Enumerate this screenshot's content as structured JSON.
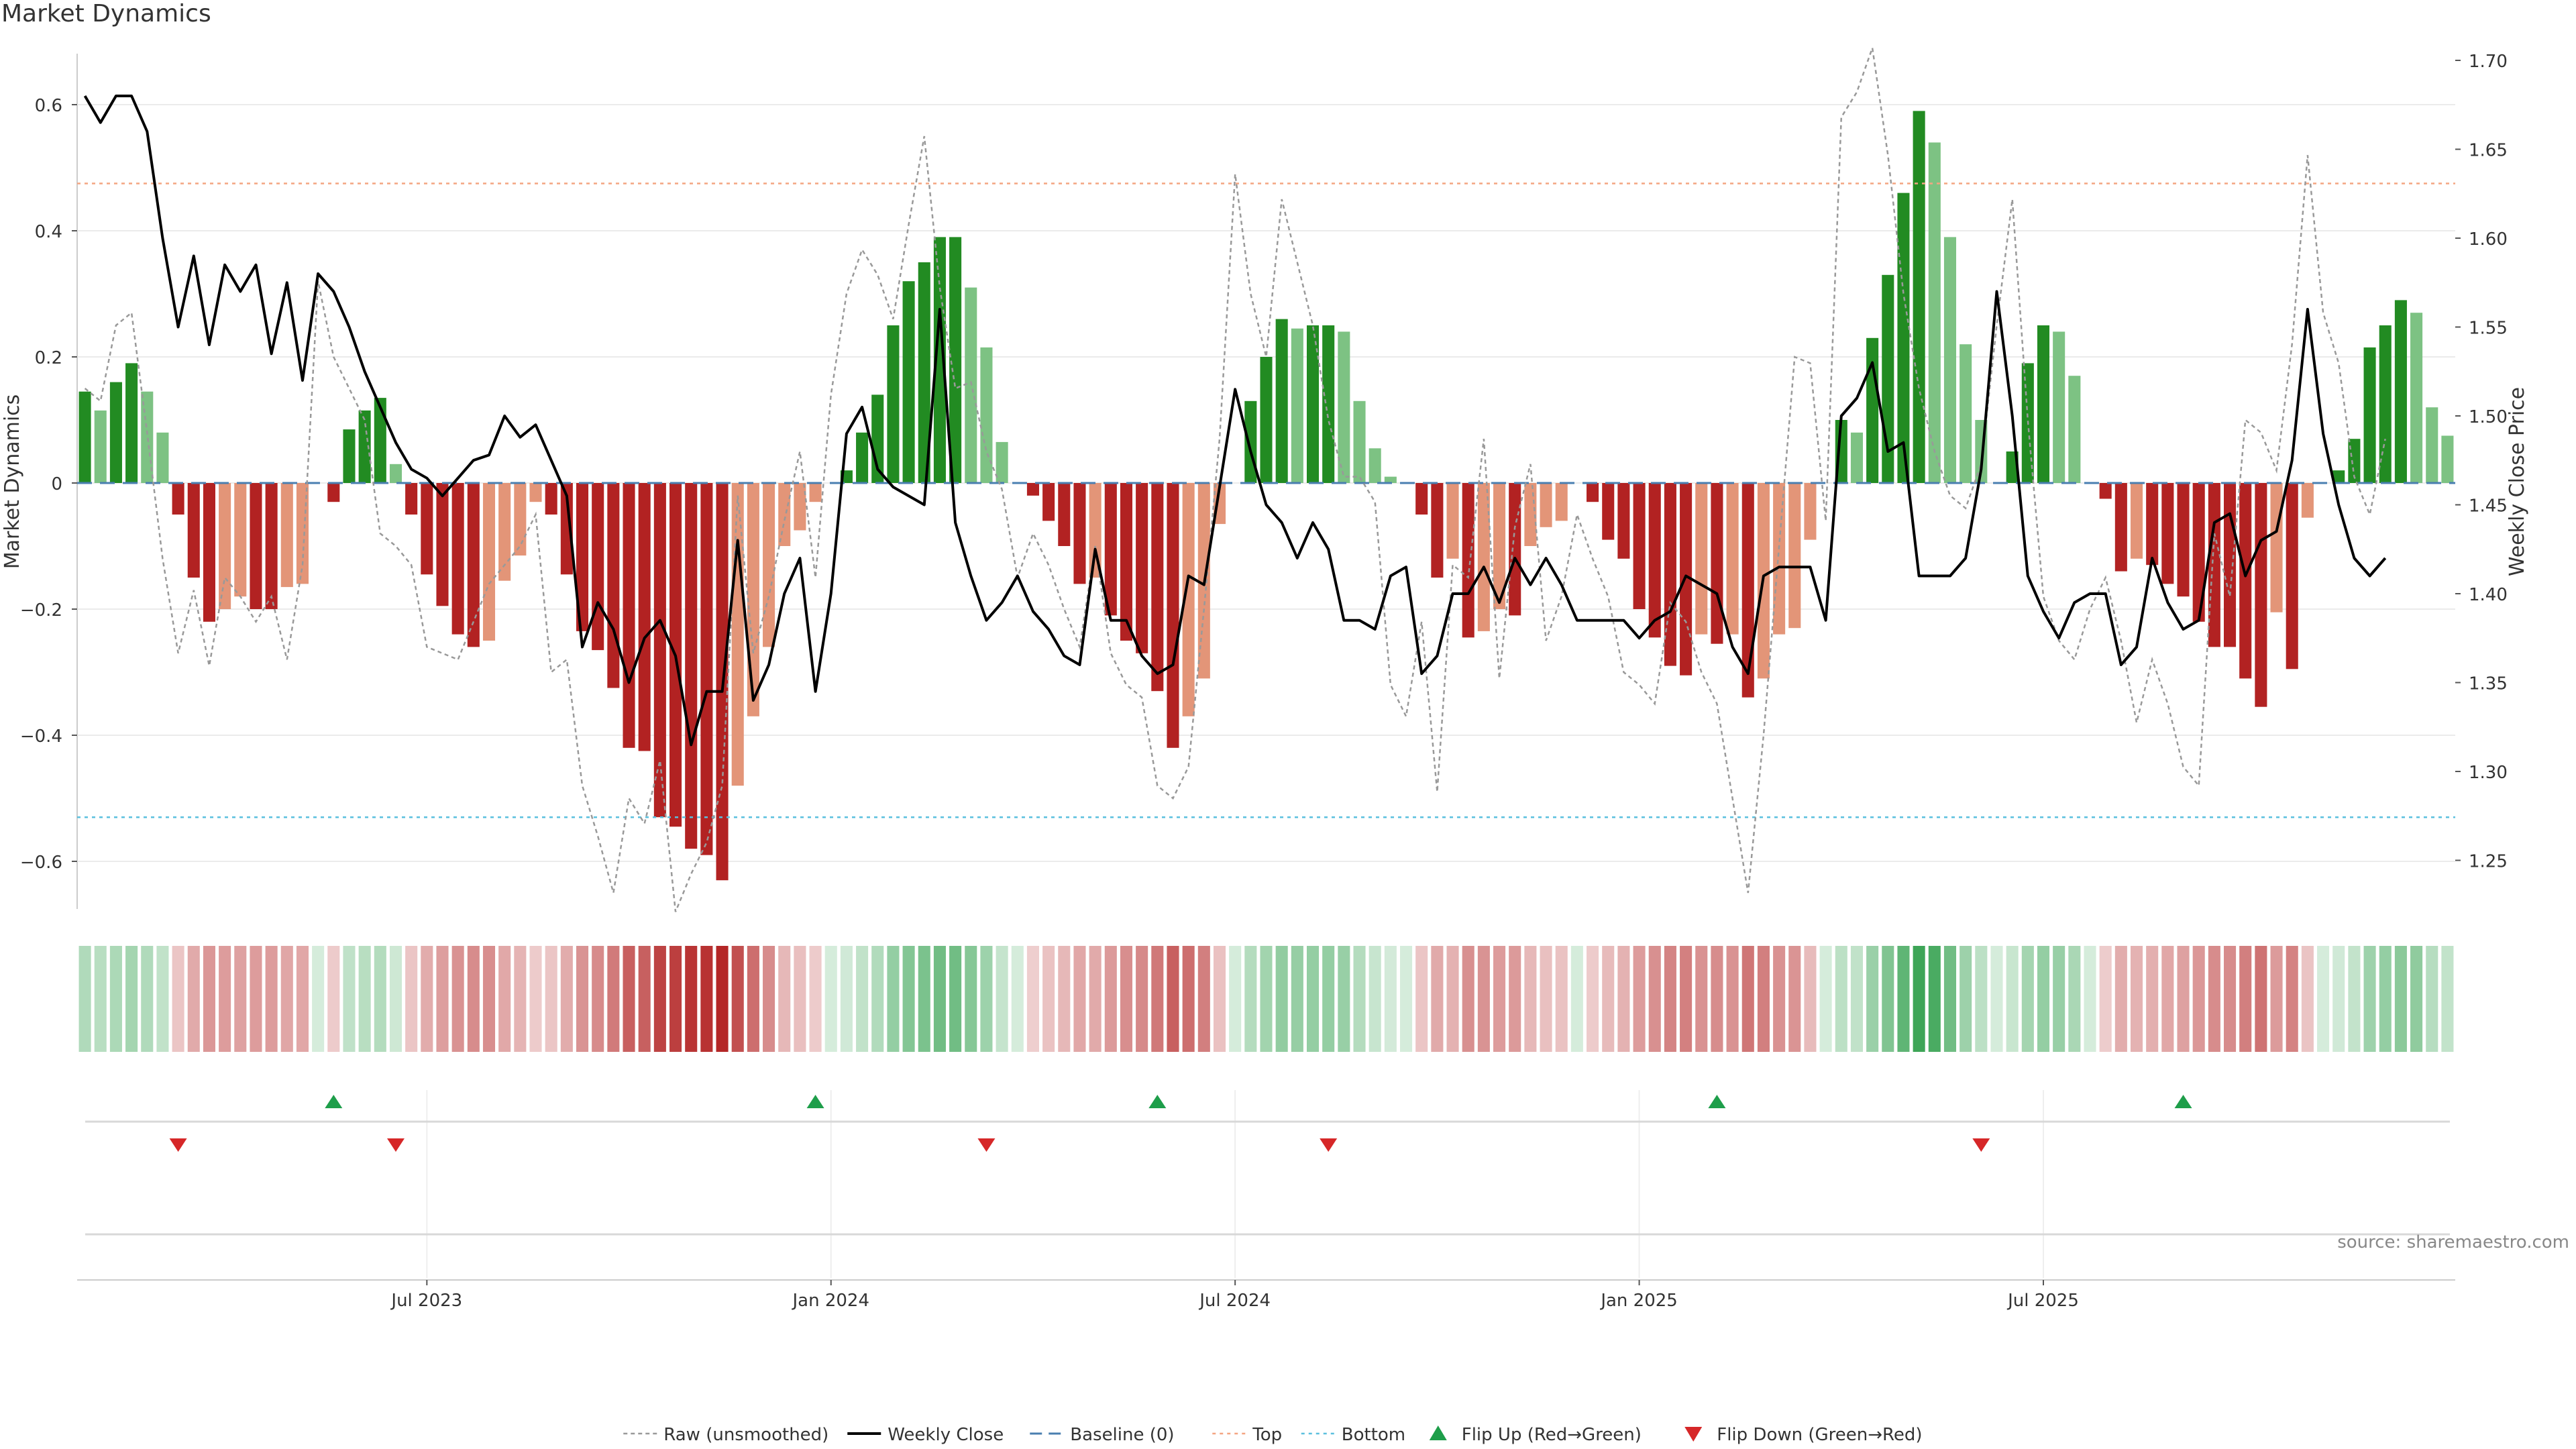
{
  "title": "Market Dynamics",
  "source": "source: sharemaestro.com",
  "chart_data": {
    "type": "bar",
    "title": "Market Dynamics",
    "ylabel_left": "Market Dynamics",
    "ylabel_right": "Weekly Close Price",
    "ylim_left": [
      -0.68,
      0.68
    ],
    "ylim_right": [
      1.22,
      1.7
    ],
    "yticks_left": [
      0.6,
      0.4,
      0.2,
      0,
      -0.2,
      -0.4,
      -0.6
    ],
    "ytick_labels_left": [
      "0.6",
      "0.4",
      "0.2",
      "0",
      "−0.2",
      "−0.4",
      "−0.6"
    ],
    "yticks_right": [
      1.7,
      1.65,
      1.6,
      1.55,
      1.5,
      1.45,
      1.4,
      1.35,
      1.3,
      1.25
    ],
    "ytick_labels_right": [
      "1.70",
      "1.65",
      "1.60",
      "1.55",
      "1.50",
      "1.45",
      "1.40",
      "1.35",
      "1.30",
      "1.25"
    ],
    "x_ticks": [
      {
        "label": "Jul 2023",
        "week": 22
      },
      {
        "label": "Jan 2024",
        "week": 48
      },
      {
        "label": "Jul 2024",
        "week": 74
      },
      {
        "label": "Jan 2025",
        "week": 100
      },
      {
        "label": "Jul 2025",
        "week": 126
      }
    ],
    "top_threshold": 0.475,
    "bottom_threshold": -0.53,
    "baseline": 0,
    "grid": true,
    "colors": {
      "strong_green": "#228B22",
      "light_green": "#7DC283",
      "strong_red": "#B22222",
      "light_red": "#E39578",
      "top_line": "#F4A582",
      "bottom_line": "#5BC0DE",
      "baseline": "#4A7FB0",
      "close_line": "#000000",
      "raw_line": "#999999",
      "flip_up": "#1E9E4A",
      "flip_down": "#D62728"
    },
    "series": [
      {
        "name": "Market Dynamics",
        "values": [
          0.145,
          0.115,
          0.16,
          0.19,
          0.145,
          0.08,
          -0.05,
          -0.15,
          -0.22,
          -0.2,
          -0.18,
          -0.2,
          -0.2,
          -0.165,
          -0.16,
          0,
          -0.03,
          0.085,
          0.115,
          0.135,
          0.03,
          -0.05,
          -0.145,
          -0.195,
          -0.24,
          -0.26,
          -0.25,
          -0.155,
          -0.115,
          -0.03,
          -0.05,
          -0.145,
          -0.235,
          -0.265,
          -0.325,
          -0.42,
          -0.425,
          -0.53,
          -0.545,
          -0.58,
          -0.59,
          -0.63,
          -0.48,
          -0.37,
          -0.26,
          -0.1,
          -0.075,
          -0.03,
          0,
          0.02,
          0.08,
          0.14,
          0.25,
          0.32,
          0.35,
          0.39,
          0.39,
          0.31,
          0.215,
          0.065,
          0,
          -0.02,
          -0.06,
          -0.1,
          -0.16,
          -0.15,
          -0.21,
          -0.25,
          -0.27,
          -0.33,
          -0.42,
          -0.37,
          -0.31,
          -0.065,
          0,
          0.13,
          0.2,
          0.26,
          0.245,
          0.25,
          0.25,
          0.24,
          0.13,
          0.055,
          0.01,
          0,
          -0.05,
          -0.15,
          -0.12,
          -0.245,
          -0.235,
          -0.2,
          -0.21,
          -0.1,
          -0.07,
          -0.06,
          0,
          -0.03,
          -0.09,
          -0.12,
          -0.2,
          -0.245,
          -0.29,
          -0.305,
          -0.24,
          -0.255,
          -0.24,
          -0.34,
          -0.31,
          -0.24,
          -0.23,
          -0.09,
          0,
          0.1,
          0.08,
          0.23,
          0.33,
          0.46,
          0.59,
          0.54,
          0.39,
          0.22,
          0.1,
          0,
          0.05,
          0.19,
          0.25,
          0.24,
          0.17,
          0,
          -0.025,
          -0.14,
          -0.12,
          -0.13,
          -0.16,
          -0.18,
          -0.22,
          -0.26,
          -0.26,
          -0.31,
          -0.355,
          -0.205,
          -0.295,
          -0.055,
          0,
          0.02,
          0.07,
          0.215,
          0.25,
          0.29,
          0.27,
          0.12,
          0.075
        ]
      },
      {
        "name": "Raw (unsmoothed)",
        "values": [
          0.15,
          0.13,
          0.25,
          0.27,
          0.08,
          -0.12,
          -0.27,
          -0.17,
          -0.29,
          -0.15,
          -0.18,
          -0.22,
          -0.18,
          -0.28,
          -0.13,
          0.32,
          0.2,
          0.15,
          0.1,
          -0.08,
          -0.1,
          -0.13,
          -0.26,
          -0.27,
          -0.28,
          -0.22,
          -0.16,
          -0.13,
          -0.1,
          -0.05,
          -0.3,
          -0.28,
          -0.48,
          -0.56,
          -0.65,
          -0.5,
          -0.54,
          -0.44,
          -0.68,
          -0.62,
          -0.57,
          -0.48,
          -0.02,
          -0.27,
          -0.18,
          -0.06,
          0.05,
          -0.15,
          0.14,
          0.3,
          0.37,
          0.33,
          0.26,
          0.41,
          0.55,
          0.31,
          0.15,
          0.16,
          0.05,
          -0.01,
          -0.15,
          -0.08,
          -0.13,
          -0.2,
          -0.26,
          -0.1,
          -0.27,
          -0.32,
          -0.34,
          -0.48,
          -0.5,
          -0.45,
          -0.2,
          0.07,
          0.49,
          0.3,
          0.2,
          0.45,
          0.35,
          0.25,
          0.1,
          0.01,
          0.01,
          -0.03,
          -0.32,
          -0.37,
          -0.22,
          -0.49,
          -0.13,
          -0.15,
          0.07,
          -0.31,
          -0.07,
          0.03,
          -0.25,
          -0.18,
          -0.05,
          -0.12,
          -0.18,
          -0.3,
          -0.32,
          -0.35,
          -0.19,
          -0.22,
          -0.3,
          -0.35,
          -0.5,
          -0.65,
          -0.4,
          -0.1,
          0.2,
          0.19,
          -0.06,
          0.58,
          0.62,
          0.69,
          0.52,
          0.3,
          0.15,
          0.05,
          -0.02,
          -0.04,
          0.03,
          0.25,
          0.45,
          0.1,
          -0.18,
          -0.25,
          -0.28,
          -0.2,
          -0.15,
          -0.25,
          -0.38,
          -0.28,
          -0.35,
          -0.45,
          -0.48,
          -0.08,
          -0.18,
          0.1,
          0.08,
          0.02,
          0.22,
          0.52,
          0.27,
          0.19,
          0.01,
          -0.05,
          0.07
        ]
      },
      {
        "name": "Weekly Close",
        "values": [
          1.68,
          1.665,
          1.68,
          1.68,
          1.66,
          1.6,
          1.55,
          1.59,
          1.54,
          1.585,
          1.57,
          1.585,
          1.535,
          1.575,
          1.52,
          1.58,
          1.57,
          1.55,
          1.525,
          1.505,
          1.485,
          1.47,
          1.465,
          1.455,
          1.465,
          1.475,
          1.478,
          1.5,
          1.488,
          1.495,
          1.475,
          1.455,
          1.37,
          1.395,
          1.38,
          1.35,
          1.375,
          1.385,
          1.365,
          1.315,
          1.345,
          1.345,
          1.43,
          1.34,
          1.36,
          1.4,
          1.42,
          1.345,
          1.4,
          1.49,
          1.505,
          1.47,
          1.46,
          1.455,
          1.45,
          1.56,
          1.44,
          1.41,
          1.385,
          1.395,
          1.41,
          1.39,
          1.38,
          1.365,
          1.36,
          1.425,
          1.385,
          1.385,
          1.365,
          1.355,
          1.36,
          1.41,
          1.405,
          1.46,
          1.515,
          1.48,
          1.45,
          1.44,
          1.42,
          1.44,
          1.425,
          1.385,
          1.385,
          1.38,
          1.41,
          1.415,
          1.355,
          1.365,
          1.4,
          1.4,
          1.415,
          1.395,
          1.42,
          1.405,
          1.42,
          1.405,
          1.385,
          1.385,
          1.385,
          1.385,
          1.375,
          1.385,
          1.39,
          1.41,
          1.405,
          1.4,
          1.37,
          1.355,
          1.41,
          1.415,
          1.415,
          1.415,
          1.385,
          1.5,
          1.51,
          1.53,
          1.48,
          1.485,
          1.41,
          1.41,
          1.41,
          1.42,
          1.47,
          1.57,
          1.5,
          1.41,
          1.39,
          1.375,
          1.395,
          1.4,
          1.4,
          1.36,
          1.37,
          1.42,
          1.395,
          1.38,
          1.385,
          1.44,
          1.445,
          1.41,
          1.43,
          1.435,
          1.475,
          1.56,
          1.49,
          1.45,
          1.42,
          1.41,
          1.42
        ]
      }
    ],
    "flip_up_weeks": [
      16,
      47,
      69,
      105,
      135
    ],
    "flip_down_weeks": [
      6,
      20,
      58,
      80,
      122
    ],
    "legend": [
      "Raw (unsmoothed)",
      "Weekly Close",
      "Baseline (0)",
      "Top",
      "Bottom",
      "Flip Up (Red→Green)",
      "Flip Down (Green→Red)"
    ],
    "legend_position": "bottom-center"
  }
}
